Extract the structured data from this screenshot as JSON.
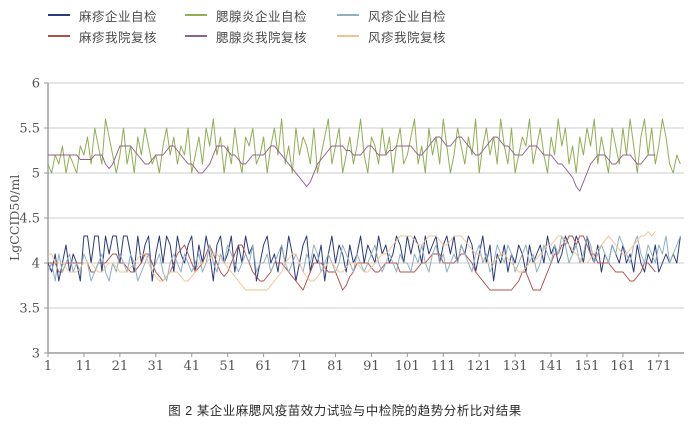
{
  "caption": "图 2  某企业麻腮风疫苗效力试验与中检院的趋势分析比对结果",
  "style": {
    "axis_color": "#9a9a9a",
    "grid_color": "#cccccc",
    "tick_text_color": "#555555"
  },
  "chart_data": {
    "type": "line",
    "title": "图 2 某企业麻腮风疫苗效力试验与中检院的趋势分析比对结果",
    "xlabel": "",
    "ylabel": "LgCCID50/ml",
    "ylim": [
      3,
      6
    ],
    "yticks": [
      3,
      3.5,
      4,
      4.5,
      5,
      5.5,
      6
    ],
    "xticks": [
      1,
      11,
      21,
      31,
      41,
      51,
      61,
      71,
      81,
      91,
      101,
      111,
      121,
      131,
      141,
      151,
      161,
      171
    ],
    "x_range": [
      1,
      178
    ],
    "grid": "horizontal",
    "legend_position": "top",
    "series": [
      {
        "name": "麻疹企业自检",
        "color": "#2c3a7d",
        "values": [
          4.0,
          3.9,
          4.1,
          3.8,
          4.0,
          4.2,
          3.9,
          4.1,
          4.0,
          3.8,
          4.3,
          4.3,
          4.0,
          4.3,
          4.3,
          3.9,
          4.3,
          4.1,
          4.3,
          4.3,
          4.0,
          4.3,
          4.3,
          4.1,
          3.9,
          4.3,
          4.0,
          4.2,
          4.3,
          3.8,
          4.1,
          4.3,
          4.0,
          4.3,
          4.2,
          3.9,
          4.3,
          4.1,
          4.0,
          4.2,
          4.3,
          3.9,
          4.2,
          4.0,
          4.3,
          4.1,
          3.8,
          4.2,
          4.3,
          4.0,
          4.1,
          4.3,
          3.9,
          4.2,
          4.0,
          4.3,
          4.1,
          4.2,
          3.8,
          4.0,
          4.2,
          4.3,
          4.0,
          4.1,
          3.9,
          4.2,
          4.0,
          4.3,
          4.1,
          3.8,
          4.0,
          4.2,
          4.3,
          3.9,
          4.1,
          4.0,
          4.2,
          3.8,
          4.1,
          4.3,
          4.0,
          4.2,
          4.1,
          3.9,
          4.2,
          4.0,
          4.1,
          4.3,
          4.0,
          4.2,
          4.1,
          4.0,
          4.3,
          4.1,
          4.2,
          4.0,
          4.1,
          4.3,
          4.2,
          4.0,
          4.3,
          4.1,
          4.3,
          4.2,
          4.0,
          4.3,
          4.1,
          4.2,
          4.3,
          4.0,
          4.2,
          4.3,
          4.1,
          4.3,
          4.0,
          4.2,
          4.1,
          4.3,
          4.2,
          3.9,
          4.1,
          4.3,
          4.0,
          4.2,
          3.8,
          4.1,
          4.0,
          4.2,
          3.9,
          4.1,
          4.0,
          4.2,
          4.1,
          3.9,
          4.2,
          4.0,
          4.1,
          4.2,
          4.0,
          4.3,
          4.1,
          4.2,
          4.0,
          4.1,
          4.3,
          4.2,
          4.1,
          4.3,
          4.2,
          4.0,
          4.3,
          4.1,
          4.0,
          4.2,
          3.9,
          4.1,
          4.0,
          4.2,
          4.1,
          4.0,
          4.2,
          4.0,
          4.1,
          3.9,
          4.2,
          4.0,
          3.9,
          4.1,
          4.0,
          4.2,
          3.9,
          4.0,
          4.1,
          4.0,
          4.1,
          4.0,
          4.3
        ]
      },
      {
        "name": "麻疹我院复核",
        "color": "#b0504a",
        "values": [
          4.0,
          4.0,
          4.0,
          3.9,
          3.9,
          4.0,
          4.0,
          4.0,
          4.0,
          4.0,
          4.0,
          4.0,
          3.9,
          3.9,
          4.0,
          4.0,
          4.0,
          4.05,
          4.1,
          4.1,
          4.0,
          4.0,
          3.95,
          3.9,
          3.9,
          3.95,
          4.0,
          4.1,
          4.1,
          4.0,
          3.9,
          3.85,
          3.8,
          3.85,
          3.9,
          4.0,
          4.1,
          4.15,
          4.2,
          4.1,
          4.0,
          3.9,
          3.95,
          4.0,
          4.1,
          4.2,
          4.1,
          4.0,
          3.9,
          3.85,
          3.9,
          4.0,
          4.1,
          4.2,
          4.2,
          4.1,
          4.0,
          3.9,
          3.85,
          3.8,
          3.8,
          3.85,
          3.9,
          4.0,
          4.0,
          4.0,
          3.95,
          3.9,
          3.85,
          3.8,
          3.75,
          3.7,
          3.8,
          3.9,
          4.0,
          4.0,
          4.0,
          3.95,
          3.9,
          3.9,
          3.9,
          3.8,
          3.7,
          3.75,
          3.85,
          3.9,
          4.0,
          4.0,
          4.0,
          4.0,
          3.95,
          3.9,
          3.9,
          3.95,
          4.0,
          4.0,
          4.0,
          4.0,
          3.9,
          3.9,
          3.9,
          3.9,
          3.9,
          3.95,
          4.0,
          4.0,
          4.05,
          4.1,
          4.1,
          4.1,
          4.0,
          4.0,
          4.0,
          4.0,
          4.05,
          4.1,
          4.1,
          4.05,
          4.0,
          3.9,
          3.85,
          3.8,
          3.75,
          3.7,
          3.7,
          3.7,
          3.7,
          3.7,
          3.7,
          3.7,
          3.75,
          3.8,
          3.9,
          3.9,
          3.8,
          3.7,
          3.7,
          3.7,
          3.8,
          3.9,
          4.0,
          4.1,
          4.1,
          4.2,
          4.2,
          4.3,
          4.3,
          4.2,
          4.3,
          4.3,
          4.2,
          4.1,
          4.1,
          4.0,
          4.0,
          4.0,
          4.0,
          3.95,
          3.9,
          3.9,
          3.9,
          3.85,
          3.8,
          3.8,
          3.85,
          3.9,
          4.0,
          4.0,
          3.95,
          3.9
        ]
      },
      {
        "name": "腮腺炎企业自检",
        "color": "#92ae54",
        "values": [
          5.1,
          5.0,
          5.2,
          5.1,
          5.3,
          5.0,
          5.2,
          5.1,
          5.0,
          5.3,
          5.2,
          5.4,
          5.1,
          5.5,
          5.3,
          5.1,
          5.6,
          5.4,
          5.2,
          5.0,
          5.2,
          5.5,
          5.1,
          5.3,
          5.0,
          5.4,
          5.2,
          5.5,
          5.3,
          5.1,
          5.2,
          5.0,
          5.3,
          5.5,
          5.2,
          5.4,
          5.1,
          5.3,
          5.2,
          5.5,
          5.0,
          5.2,
          5.4,
          5.1,
          5.5,
          5.3,
          5.6,
          5.2,
          5.4,
          5.0,
          5.3,
          5.1,
          5.5,
          5.2,
          5.0,
          5.4,
          5.3,
          5.5,
          5.1,
          5.2,
          5.4,
          5.0,
          5.3,
          5.5,
          5.2,
          5.6,
          5.1,
          5.3,
          5.0,
          5.5,
          5.2,
          5.4,
          5.3,
          5.1,
          5.5,
          5.0,
          5.2,
          5.4,
          5.6,
          5.1,
          5.3,
          5.5,
          5.0,
          5.2,
          5.4,
          5.1,
          5.3,
          5.6,
          5.2,
          5.0,
          5.4,
          5.3,
          5.1,
          5.5,
          5.2,
          5.4,
          5.0,
          5.3,
          5.5,
          5.1,
          5.2,
          5.4,
          5.6,
          5.1,
          5.3,
          5.0,
          5.5,
          5.2,
          5.4,
          5.1,
          5.6,
          5.3,
          5.0,
          5.2,
          5.5,
          5.3,
          5.1,
          5.4,
          5.2,
          5.6,
          5.0,
          5.3,
          5.5,
          5.2,
          5.4,
          5.1,
          5.6,
          5.3,
          5.1,
          5.5,
          5.0,
          5.2,
          5.4,
          5.3,
          5.6,
          5.1,
          5.3,
          5.5,
          5.2,
          5.0,
          5.4,
          5.2,
          5.6,
          5.3,
          5.5,
          5.1,
          5.3,
          5.0,
          5.4,
          5.2,
          5.5,
          5.3,
          5.6,
          5.1,
          5.4,
          5.2,
          5.0,
          5.5,
          5.3,
          5.1,
          5.5,
          5.2,
          5.6,
          5.3,
          5.0,
          5.4,
          5.6,
          5.2,
          5.5,
          5.1,
          5.3,
          5.6,
          5.4,
          5.1,
          5.0,
          5.2,
          5.1
        ]
      },
      {
        "name": "腮腺炎我院复核",
        "color": "#90618f",
        "values": [
          5.2,
          5.2,
          5.2,
          5.2,
          5.2,
          5.2,
          5.2,
          5.2,
          5.2,
          5.15,
          5.15,
          5.15,
          5.15,
          5.2,
          5.2,
          5.2,
          5.1,
          5.05,
          5.1,
          5.2,
          5.3,
          5.3,
          5.3,
          5.3,
          5.25,
          5.2,
          5.15,
          5.1,
          5.1,
          5.15,
          5.2,
          5.2,
          5.2,
          5.25,
          5.3,
          5.3,
          5.25,
          5.2,
          5.15,
          5.1,
          5.1,
          5.05,
          5.0,
          5.0,
          5.05,
          5.1,
          5.2,
          5.3,
          5.3,
          5.3,
          5.25,
          5.2,
          5.2,
          5.15,
          5.1,
          5.1,
          5.15,
          5.2,
          5.2,
          5.2,
          5.2,
          5.25,
          5.3,
          5.3,
          5.25,
          5.2,
          5.15,
          5.1,
          5.05,
          5.0,
          4.95,
          4.9,
          4.85,
          4.9,
          5.0,
          5.1,
          5.15,
          5.2,
          5.25,
          5.3,
          5.3,
          5.3,
          5.3,
          5.25,
          5.25,
          5.2,
          5.2,
          5.2,
          5.25,
          5.3,
          5.3,
          5.25,
          5.2,
          5.2,
          5.2,
          5.25,
          5.25,
          5.3,
          5.3,
          5.3,
          5.3,
          5.3,
          5.25,
          5.2,
          5.2,
          5.25,
          5.3,
          5.35,
          5.4,
          5.4,
          5.35,
          5.3,
          5.3,
          5.35,
          5.4,
          5.4,
          5.35,
          5.3,
          5.25,
          5.2,
          5.2,
          5.25,
          5.3,
          5.35,
          5.4,
          5.4,
          5.35,
          5.3,
          5.3,
          5.25,
          5.2,
          5.2,
          5.2,
          5.25,
          5.3,
          5.3,
          5.3,
          5.25,
          5.2,
          5.2,
          5.2,
          5.15,
          5.1,
          5.1,
          5.05,
          5.0,
          4.95,
          4.85,
          4.8,
          4.9,
          5.0,
          5.1,
          5.15,
          5.2,
          5.2,
          5.2,
          5.15,
          5.1,
          5.1,
          5.15,
          5.2,
          5.2,
          5.2,
          5.15,
          5.1,
          5.1,
          5.15,
          5.2,
          5.2,
          5.2
        ]
      },
      {
        "name": "风疹企业自检",
        "color": "#8fb0bf",
        "values": [
          3.9,
          4.0,
          3.8,
          4.1,
          3.9,
          4.0,
          4.1,
          3.9,
          4.0,
          3.9,
          4.1,
          4.0,
          3.8,
          3.9,
          4.0,
          4.1,
          3.9,
          3.8,
          4.0,
          3.9,
          4.1,
          4.0,
          3.9,
          4.1,
          4.0,
          3.8,
          3.9,
          4.0,
          4.1,
          3.9,
          4.0,
          4.1,
          3.9,
          3.8,
          4.0,
          4.1,
          4.0,
          3.9,
          4.1,
          4.0,
          3.9,
          4.0,
          4.1,
          3.9,
          4.0,
          4.2,
          4.0,
          3.9,
          4.1,
          4.0,
          4.2,
          4.1,
          4.0,
          3.9,
          4.0,
          4.1,
          4.0,
          4.2,
          3.9,
          4.0,
          4.0,
          4.1,
          3.9,
          4.0,
          4.1,
          4.2,
          4.0,
          3.9,
          4.0,
          4.1,
          4.0,
          3.9,
          4.1,
          4.0,
          4.2,
          4.1,
          3.9,
          4.0,
          4.1,
          4.0,
          3.9,
          4.0,
          4.2,
          4.1,
          4.0,
          3.9,
          4.1,
          4.0,
          3.9,
          4.0,
          4.1,
          4.2,
          4.0,
          3.9,
          4.0,
          4.1,
          4.0,
          3.9,
          4.1,
          4.0,
          4.0,
          3.9,
          4.1,
          4.0,
          4.2,
          4.0,
          3.9,
          4.1,
          4.2,
          4.0,
          4.1,
          3.9,
          4.0,
          4.1,
          4.0,
          4.2,
          4.1,
          4.0,
          3.9,
          4.1,
          4.2,
          4.0,
          4.1,
          3.9,
          4.0,
          4.2,
          4.1,
          4.0,
          4.2,
          4.1,
          3.9,
          4.0,
          4.1,
          4.2,
          4.0,
          4.1,
          3.9,
          4.0,
          4.2,
          4.1,
          4.0,
          4.2,
          4.1,
          4.3,
          4.2,
          4.0,
          4.1,
          4.2,
          4.0,
          4.1,
          4.3,
          4.2,
          4.0,
          4.1,
          4.2,
          4.1,
          4.0,
          4.2,
          4.1,
          4.3,
          4.2,
          4.1,
          4.0,
          4.2,
          4.3,
          4.1,
          4.0,
          4.2,
          4.1,
          4.0,
          4.2,
          4.1,
          4.3,
          4.0,
          4.1,
          4.2,
          4.3
        ]
      },
      {
        "name": "风疹我院复核",
        "color": "#eec591",
        "values": [
          4.1,
          4.1,
          4.0,
          4.0,
          4.0,
          3.95,
          3.9,
          3.9,
          3.9,
          3.95,
          4.0,
          4.0,
          4.0,
          3.95,
          3.9,
          3.9,
          3.95,
          4.0,
          4.0,
          3.95,
          3.9,
          3.9,
          3.9,
          3.95,
          4.0,
          4.05,
          4.1,
          4.1,
          4.0,
          3.9,
          3.85,
          3.8,
          3.8,
          3.85,
          3.9,
          3.9,
          3.9,
          3.85,
          3.8,
          3.8,
          3.85,
          3.9,
          4.0,
          4.0,
          4.0,
          4.05,
          4.1,
          4.1,
          4.05,
          4.0,
          3.95,
          3.9,
          3.85,
          3.8,
          3.75,
          3.7,
          3.7,
          3.7,
          3.7,
          3.7,
          3.7,
          3.7,
          3.75,
          3.8,
          3.85,
          3.9,
          4.0,
          4.05,
          4.1,
          4.1,
          4.0,
          3.9,
          3.85,
          3.8,
          3.8,
          3.85,
          3.9,
          3.95,
          4.0,
          4.0,
          3.95,
          3.9,
          3.9,
          3.95,
          4.0,
          4.0,
          4.0,
          3.95,
          3.9,
          3.9,
          3.95,
          4.0,
          4.05,
          4.1,
          4.1,
          4.15,
          4.2,
          4.25,
          4.3,
          4.3,
          4.3,
          4.3,
          4.25,
          4.2,
          4.2,
          4.25,
          4.3,
          4.3,
          4.3,
          4.25,
          4.2,
          4.2,
          4.25,
          4.3,
          4.3,
          4.3,
          4.25,
          4.2,
          4.15,
          4.1,
          4.1,
          4.05,
          4.0,
          4.0,
          4.0,
          4.05,
          4.1,
          4.1,
          4.05,
          4.0,
          3.95,
          3.9,
          3.9,
          3.95,
          4.0,
          4.0,
          4.05,
          4.1,
          4.15,
          4.2,
          4.2,
          4.25,
          4.3,
          4.3,
          4.25,
          4.2,
          4.15,
          4.1,
          4.05,
          4.0,
          4.0,
          4.05,
          4.1,
          4.15,
          4.2,
          4.25,
          4.3,
          4.25,
          4.2,
          4.15,
          4.1,
          4.1,
          4.15,
          4.2,
          4.25,
          4.3,
          4.3,
          4.35,
          4.3,
          4.35
        ]
      }
    ]
  }
}
